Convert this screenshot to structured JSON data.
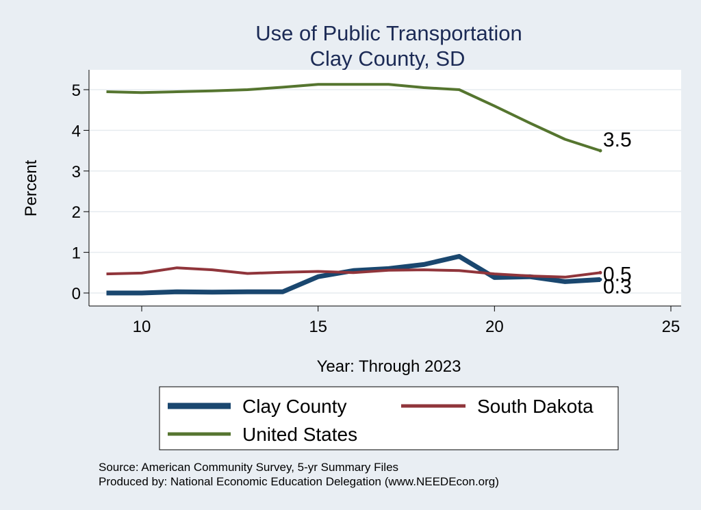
{
  "title_line1": "Use of Public Transportation",
  "title_line2": "Clay County, SD",
  "notes": {
    "source": "Source: American Community Survey, 5-yr Summary Files",
    "produced_by": "Produced by: National Economic Education Delegation (www.NEEDEcon.org)"
  },
  "colors": {
    "background": "#e9eef3",
    "plot_background": "#ffffff",
    "title": "#1b2a55",
    "grid": "#e6ebef"
  },
  "chart_data": {
    "type": "line",
    "title": "Use of Public Transportation Clay County, SD",
    "xlabel": "Year: Through 2023",
    "ylabel": "Percent",
    "xlim": [
      9,
      25
    ],
    "ylim": [
      0,
      5.3
    ],
    "xticks": [
      10,
      15,
      20,
      25
    ],
    "yticks": [
      0,
      1,
      2,
      3,
      4,
      5
    ],
    "grid": true,
    "legend_position": "bottom",
    "x": [
      9,
      10,
      11,
      12,
      13,
      14,
      15,
      16,
      17,
      18,
      19,
      20,
      21,
      22,
      23
    ],
    "series": [
      {
        "name": "Clay County",
        "color": "#1a476f",
        "width": 7,
        "values": [
          0.0,
          0.0,
          0.03,
          0.02,
          0.03,
          0.03,
          0.4,
          0.55,
          0.6,
          0.7,
          0.9,
          0.38,
          0.4,
          0.28,
          0.33
        ],
        "end_label": "0.3"
      },
      {
        "name": "South Dakota",
        "color": "#90353b",
        "width": 4,
        "values": [
          0.47,
          0.49,
          0.62,
          0.57,
          0.48,
          0.51,
          0.53,
          0.5,
          0.56,
          0.57,
          0.55,
          0.47,
          0.42,
          0.39,
          0.5
        ],
        "end_label": "0.5"
      },
      {
        "name": "United States",
        "color": "#55752f",
        "width": 4,
        "values": [
          4.95,
          4.93,
          4.95,
          4.97,
          5.0,
          5.06,
          5.13,
          5.13,
          5.13,
          5.05,
          5.0,
          4.6,
          4.18,
          3.78,
          3.5
        ],
        "end_label": "3.5"
      }
    ]
  }
}
